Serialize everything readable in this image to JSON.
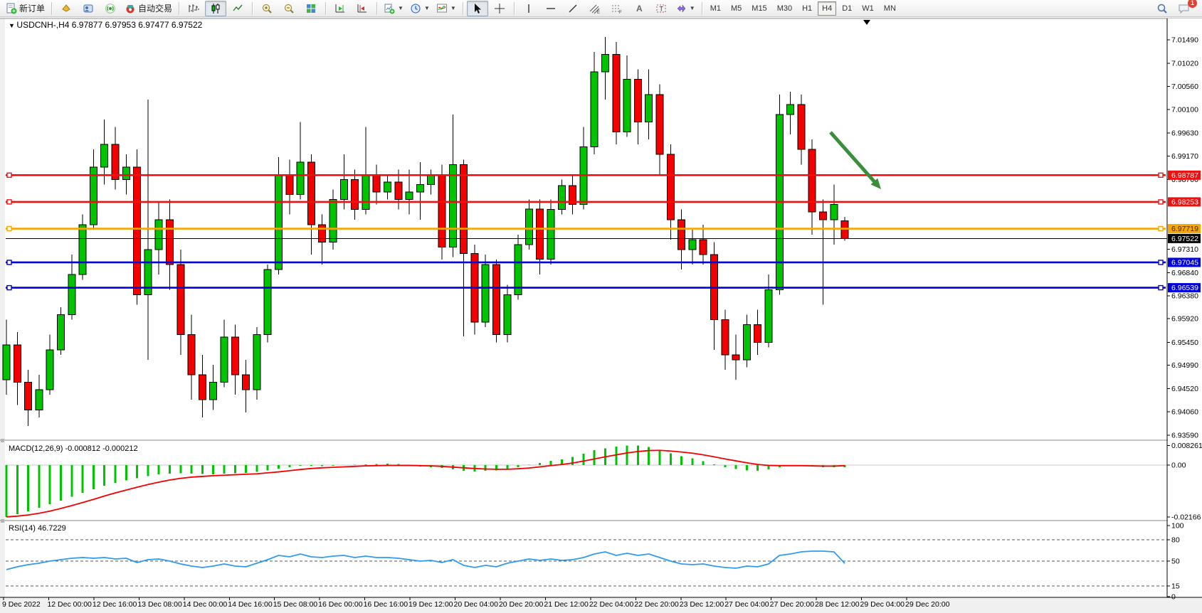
{
  "toolbar": {
    "new_order_label": "新订单",
    "autotrading_label": "自动交易",
    "timeframes": [
      "M1",
      "M5",
      "M15",
      "M30",
      "H1",
      "H4",
      "D1",
      "W1",
      "MN"
    ],
    "active_timeframe": "H4",
    "chat_badge": "1"
  },
  "chart": {
    "title_symbol": "USDCNH-,H4",
    "title_ohlc": "6.97877 6.97953 6.97477 6.97522"
  },
  "chart_data": {
    "type": "candlestick",
    "symbol": "USDCNH",
    "timeframe": "H4",
    "main_range": [
      6.93508,
      7.01902
    ],
    "price_ticks": [
      "7.01490",
      "7.01020",
      "7.00560",
      "7.00100",
      "6.99630",
      "6.99170",
      "6.98700",
      "6.97310",
      "6.96840",
      "6.96380",
      "6.95920",
      "6.95450",
      "6.94990",
      "6.94520",
      "6.94060",
      "6.93590"
    ],
    "hlines": [
      {
        "price": "6.98787",
        "value": 6.98787,
        "color": "#ee1111",
        "text_color": "#ffffff"
      },
      {
        "price": "6.98253",
        "value": 6.98253,
        "color": "#ee1111",
        "text_color": "#ffffff"
      },
      {
        "price": "6.97719",
        "value": 6.97719,
        "color": "#f7a500",
        "text_color": "#3a2a00"
      },
      {
        "price": "6.97045",
        "value": 6.97045,
        "color": "#0000dd",
        "text_color": "#ffffff"
      },
      {
        "price": "6.96539",
        "value": 6.96539,
        "color": "#0000dd",
        "text_color": "#ffffff"
      }
    ],
    "bid": {
      "price": "6.97522",
      "value": 6.97522,
      "color": "#000000",
      "text_color": "#ffffff"
    },
    "up_color": "#00c400",
    "down_color": "#f40000",
    "candles": [
      [
        6.947,
        6.959,
        6.944,
        6.954
      ],
      [
        6.954,
        6.9565,
        6.942,
        6.9465
      ],
      [
        6.9465,
        6.949,
        6.9378,
        6.941
      ],
      [
        6.941,
        6.948,
        6.9395,
        6.945
      ],
      [
        6.945,
        6.956,
        6.944,
        6.953
      ],
      [
        6.953,
        6.9615,
        6.952,
        6.96
      ],
      [
        6.96,
        6.972,
        6.959,
        6.968
      ],
      [
        6.968,
        6.98,
        6.967,
        6.978
      ],
      [
        6.978,
        6.993,
        6.977,
        6.9895
      ],
      [
        6.9895,
        6.999,
        6.986,
        6.994
      ],
      [
        6.994,
        6.9975,
        6.985,
        6.987
      ],
      [
        6.987,
        6.992,
        6.984,
        6.9895
      ],
      [
        6.9895,
        6.993,
        6.962,
        6.964
      ],
      [
        6.964,
        7.003,
        6.951,
        6.973
      ],
      [
        6.973,
        6.9825,
        6.968,
        6.979
      ],
      [
        6.979,
        6.983,
        6.965,
        6.97
      ],
      [
        6.97,
        6.973,
        6.952,
        6.956
      ],
      [
        6.956,
        6.96,
        6.943,
        6.948
      ],
      [
        6.948,
        6.952,
        6.9395,
        6.943
      ],
      [
        6.943,
        6.95,
        6.941,
        6.9465
      ],
      [
        6.9465,
        6.959,
        6.9455,
        6.9555
      ],
      [
        6.9555,
        6.958,
        6.944,
        6.948
      ],
      [
        6.948,
        6.951,
        6.9405,
        6.945
      ],
      [
        6.945,
        6.9575,
        6.943,
        6.956
      ],
      [
        6.956,
        6.97,
        6.9545,
        6.969
      ],
      [
        6.969,
        6.9915,
        6.968,
        6.988
      ],
      [
        6.988,
        6.991,
        6.98,
        6.984
      ],
      [
        6.984,
        6.9985,
        6.983,
        6.9905
      ],
      [
        6.9905,
        6.992,
        6.972,
        6.978
      ],
      [
        6.978,
        6.98,
        6.97,
        6.9745
      ],
      [
        6.9745,
        6.985,
        6.973,
        6.983
      ],
      [
        6.983,
        6.992,
        6.981,
        6.987
      ],
      [
        6.987,
        6.989,
        6.979,
        6.981
      ],
      [
        6.981,
        6.9975,
        6.98,
        6.988
      ],
      [
        6.988,
        6.99,
        6.982,
        6.9845
      ],
      [
        6.9845,
        6.988,
        6.983,
        6.9865
      ],
      [
        6.9865,
        6.989,
        6.981,
        6.983
      ],
      [
        6.983,
        6.989,
        6.98,
        6.9845
      ],
      [
        6.9845,
        6.9905,
        6.979,
        6.986
      ],
      [
        6.986,
        6.989,
        6.984,
        6.9878
      ],
      [
        6.9878,
        6.99,
        6.971,
        6.9735
      ],
      [
        6.9735,
        7.0,
        6.9715,
        6.99
      ],
      [
        6.99,
        6.991,
        6.9557,
        6.9722
      ],
      [
        6.9722,
        6.974,
        6.956,
        6.9585
      ],
      [
        6.9585,
        6.972,
        6.9575,
        6.97
      ],
      [
        6.97,
        6.971,
        6.9545,
        6.956
      ],
      [
        6.956,
        6.966,
        6.9545,
        6.964
      ],
      [
        6.964,
        6.976,
        6.963,
        6.974
      ],
      [
        6.974,
        6.983,
        6.973,
        6.9811
      ],
      [
        6.9811,
        6.983,
        6.968,
        6.9711
      ],
      [
        6.9711,
        6.983,
        6.97,
        6.981
      ],
      [
        6.981,
        6.987,
        6.98,
        6.9858
      ],
      [
        6.9858,
        6.988,
        6.98,
        6.982
      ],
      [
        6.982,
        6.9975,
        6.981,
        6.9935
      ],
      [
        6.9935,
        7.0125,
        6.992,
        7.0085
      ],
      [
        7.0085,
        7.0155,
        7.003,
        7.012
      ],
      [
        7.012,
        7.0145,
        6.994,
        6.9965
      ],
      [
        6.9965,
        7.0118,
        6.9955,
        7.007
      ],
      [
        7.007,
        7.009,
        6.994,
        6.9985
      ],
      [
        6.9985,
        7.009,
        6.995,
        7.004
      ],
      [
        7.004,
        7.006,
        6.988,
        6.992
      ],
      [
        6.992,
        6.994,
        6.975,
        6.979
      ],
      [
        6.979,
        6.981,
        6.969,
        6.973
      ],
      [
        6.973,
        6.977,
        6.97,
        6.975
      ],
      [
        6.975,
        6.978,
        6.97,
        6.972
      ],
      [
        6.972,
        6.9745,
        6.953,
        6.959
      ],
      [
        6.959,
        6.961,
        6.949,
        6.952
      ],
      [
        6.952,
        6.956,
        6.947,
        6.951
      ],
      [
        6.951,
        6.96,
        6.9495,
        6.958
      ],
      [
        6.958,
        6.961,
        6.952,
        6.9545
      ],
      [
        6.9545,
        6.968,
        6.9535,
        6.965
      ],
      [
        6.965,
        7.004,
        6.964,
        7.0
      ],
      [
        7.0,
        7.0045,
        6.996,
        7.002
      ],
      [
        7.002,
        7.004,
        6.99,
        6.993
      ],
      [
        6.993,
        6.995,
        6.976,
        6.9805
      ],
      [
        6.9805,
        6.983,
        6.962,
        6.979
      ],
      [
        6.979,
        6.986,
        6.974,
        6.982
      ],
      [
        6.97877,
        6.97953,
        6.97477,
        6.97522
      ]
    ],
    "time_labels": [
      "9 Dec 2022",
      "12 Dec 00:00",
      "12 Dec 16:00",
      "13 Dec 08:00",
      "14 Dec 00:00",
      "14 Dec 16:00",
      "15 Dec 08:00",
      "16 Dec 00:00",
      "16 Dec 16:00",
      "19 Dec 12:00",
      "20 Dec 04:00",
      "20 Dec 20:00",
      "21 Dec 12:00",
      "22 Dec 04:00",
      "22 Dec 20:00",
      "23 Dec 12:00",
      "27 Dec 04:00",
      "27 Dec 20:00",
      "28 Dec 12:00",
      "29 Dec 04:00",
      "29 Dec 20:00"
    ],
    "macd": {
      "label": "MACD(12,26,9)",
      "values_text": "-0.000812 -0.000212",
      "range": [
        -0.02254,
        0.00954
      ],
      "ticks": [
        {
          "text": "0.008261",
          "value": 0.008261
        },
        {
          "text": "0.00",
          "value": 0
        },
        {
          "text": "-0.02166",
          "value": -0.02166
        }
      ],
      "hist_color": "#00c400",
      "signal_color": "#f40000",
      "histogram": [
        -0.0216,
        -0.0205,
        -0.0192,
        -0.0178,
        -0.0163,
        -0.0148,
        -0.0132,
        -0.0116,
        -0.01,
        -0.0086,
        -0.0074,
        -0.0063,
        -0.0055,
        -0.0046,
        -0.0039,
        -0.0035,
        -0.0034,
        -0.0035,
        -0.0037,
        -0.0038,
        -0.0036,
        -0.0034,
        -0.0032,
        -0.0028,
        -0.0022,
        -0.0014,
        -0.0008,
        -0.0003,
        -0.0002,
        -0.0004,
        -0.0003,
        0.0,
        0.0002,
        0.0004,
        0.0005,
        0.0006,
        0.0005,
        0.0001,
        -0.0006,
        -0.0008,
        -0.0012,
        -0.0018,
        -0.0024,
        -0.0026,
        -0.0024,
        -0.0022,
        -0.0016,
        -0.0008,
        0.0002,
        0.001,
        0.0018,
        0.0024,
        0.0034,
        0.0048,
        0.0062,
        0.007,
        0.0078,
        0.0082,
        0.00826,
        0.0076,
        0.0064,
        0.005,
        0.0038,
        0.0028,
        0.0016,
        0.0004,
        -0.0008,
        -0.0016,
        -0.0022,
        -0.0024,
        -0.0018,
        -0.0008,
        -0.0002,
        -0.0003,
        -0.0006,
        -0.0009,
        -0.0009,
        -0.000812
      ],
      "signal": [
        -0.0216,
        -0.0213,
        -0.0208,
        -0.0201,
        -0.0192,
        -0.0181,
        -0.0169,
        -0.0156,
        -0.0143,
        -0.0129,
        -0.0116,
        -0.0104,
        -0.0092,
        -0.0081,
        -0.0071,
        -0.0062,
        -0.0055,
        -0.005,
        -0.0047,
        -0.0044,
        -0.0042,
        -0.004,
        -0.0038,
        -0.0036,
        -0.0032,
        -0.0028,
        -0.0023,
        -0.0018,
        -0.0014,
        -0.0011,
        -0.0009,
        -0.0007,
        -0.0005,
        -0.0003,
        -0.0002,
        -0.0001,
        -0.0001,
        -0.0001,
        -0.0002,
        -0.0003,
        -0.0005,
        -0.0008,
        -0.0011,
        -0.0014,
        -0.0016,
        -0.0017,
        -0.0017,
        -0.0015,
        -0.0012,
        -0.0007,
        -0.0002,
        0.0003,
        0.0009,
        0.0017,
        0.0026,
        0.0035,
        0.0043,
        0.0051,
        0.0057,
        0.0061,
        0.0062,
        0.0059,
        0.0055,
        0.005,
        0.0043,
        0.0035,
        0.0026,
        0.0018,
        0.001,
        0.0003,
        -0.0001,
        -0.0002,
        -0.0002,
        -0.0002,
        -0.0003,
        -0.0004,
        -0.0004,
        -0.000212
      ]
    },
    "rsi": {
      "label": "RSI(14)",
      "value_text": "46.7229",
      "range": [
        0,
        105
      ],
      "ticks": [
        {
          "text": "100",
          "value": 100
        },
        {
          "text": "80",
          "value": 80
        },
        {
          "text": "50",
          "value": 50
        },
        {
          "text": "15",
          "value": 15
        },
        {
          "text": "0",
          "value": 0
        }
      ],
      "dashed_levels": [
        80,
        50,
        15
      ],
      "line_color": "#2e9bf0",
      "values": [
        38,
        42,
        45,
        47,
        50,
        52,
        54,
        55,
        54,
        55,
        53,
        54,
        48,
        52,
        53,
        50,
        46,
        43,
        41,
        43,
        46,
        43,
        42,
        47,
        52,
        58,
        56,
        60,
        56,
        55,
        57,
        58,
        55,
        57,
        55,
        55,
        54,
        52,
        50,
        51,
        48,
        52,
        44,
        41,
        44,
        42,
        47,
        50,
        53,
        51,
        53,
        51,
        52,
        55,
        60,
        63,
        58,
        61,
        58,
        60,
        55,
        50,
        46,
        45,
        46,
        43,
        41,
        40,
        43,
        42,
        46,
        58,
        60,
        63,
        64,
        64,
        63,
        46.7
      ]
    },
    "annotation_arrow": {
      "from": [
        1167,
        186
      ],
      "to": [
        1238,
        266
      ],
      "color": "#3a8f3a"
    }
  }
}
